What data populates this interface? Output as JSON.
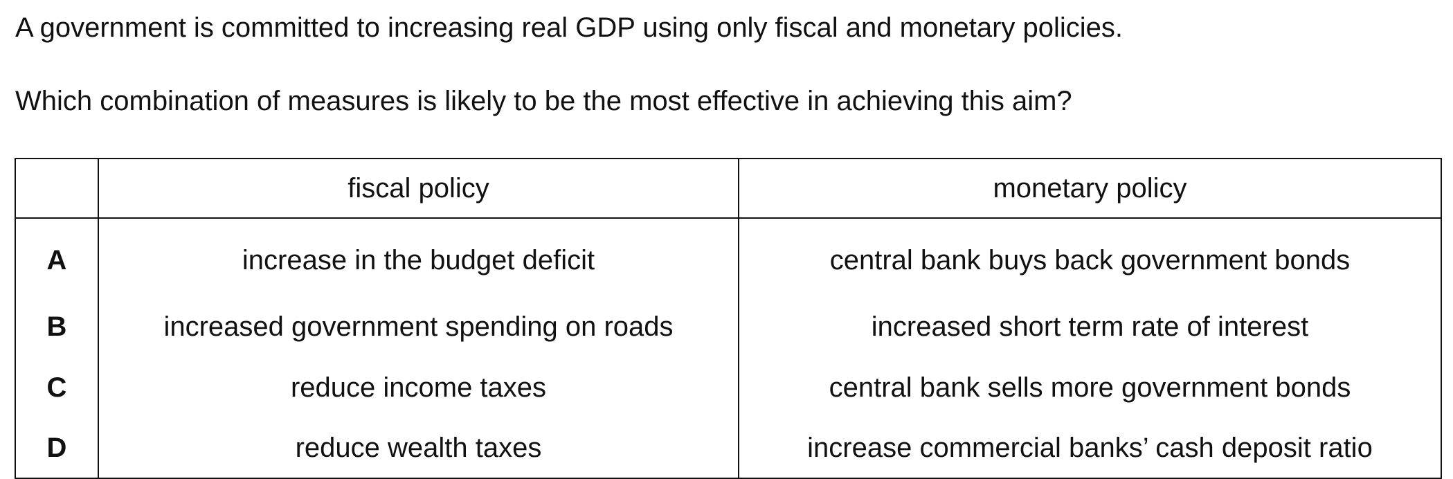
{
  "question": {
    "stem": "A government is committed to increasing real GDP using only fiscal and monetary policies.",
    "prompt": "Which combination of measures is likely to be the most effective in achieving this aim?"
  },
  "table": {
    "headers": {
      "key": "",
      "fiscal": "fiscal policy",
      "monetary": "monetary policy"
    },
    "rows": [
      {
        "key": "A",
        "fiscal": "increase in the budget deficit",
        "monetary": "central bank buys back government bonds"
      },
      {
        "key": "B",
        "fiscal": "increased government spending on roads",
        "monetary": "increased short term rate of interest"
      },
      {
        "key": "C",
        "fiscal": "reduce income taxes",
        "monetary": "central bank sells more government bonds"
      },
      {
        "key": "D",
        "fiscal": "reduce wealth taxes",
        "monetary": "increase commercial banks’ cash deposit ratio"
      }
    ]
  }
}
